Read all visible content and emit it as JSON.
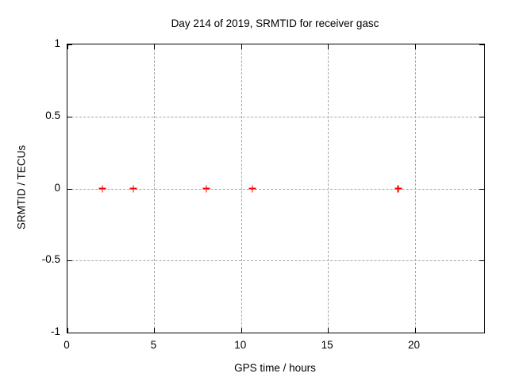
{
  "chart_data": {
    "type": "scatter",
    "title": "Day 214 of 2019, SRMTID for receiver gasc",
    "xlabel": "GPS time / hours",
    "ylabel": "SRMTID / TECUs",
    "xlim": [
      0,
      24
    ],
    "ylim": [
      -1,
      1
    ],
    "xticks": {
      "values": [
        0,
        5,
        10,
        15,
        20
      ],
      "labels": [
        "0",
        "5",
        "10",
        "15",
        "20"
      ]
    },
    "yticks": {
      "values": [
        1,
        0.5,
        0,
        -0.5,
        -1
      ],
      "labels": [
        "1",
        "0.5",
        "0",
        "-0.5",
        "-1"
      ]
    },
    "grid": true,
    "grid_style": "dashed",
    "legend": "none",
    "marker": "plus",
    "colors": {
      "marker": "#ff0000",
      "grid": "#a8a8a8",
      "border": "#000000",
      "text": "#000000",
      "background": "#ffffff"
    },
    "series": [
      {
        "name": "SRMTID",
        "points": [
          {
            "x": 2.0,
            "y": 0.0
          },
          {
            "x": 3.8,
            "y": 0.0
          },
          {
            "x": 8.0,
            "y": 0.0
          },
          {
            "x": 10.65,
            "y": 0.0
          },
          {
            "x": 19.05,
            "y": 0.0
          }
        ]
      }
    ]
  }
}
